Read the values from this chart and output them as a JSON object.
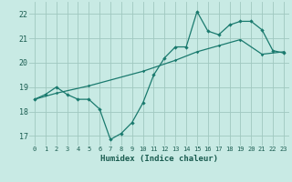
{
  "xlabel": "Humidex (Indice chaleur)",
  "bg_color": "#c8eae4",
  "grid_color": "#a0c8c0",
  "line_color": "#1a7a6e",
  "xlim": [
    -0.5,
    23.5
  ],
  "ylim": [
    16.6,
    22.5
  ],
  "xticks": [
    0,
    1,
    2,
    3,
    4,
    5,
    6,
    7,
    8,
    9,
    10,
    11,
    12,
    13,
    14,
    15,
    16,
    17,
    18,
    19,
    20,
    21,
    22,
    23
  ],
  "yticks": [
    17,
    18,
    19,
    20,
    21,
    22
  ],
  "jagged_x": [
    0,
    1,
    2,
    3,
    4,
    5,
    6,
    7,
    8,
    9,
    10,
    11,
    12,
    13,
    14,
    15,
    16,
    17,
    18,
    19,
    20,
    21,
    22,
    23
  ],
  "jagged_y": [
    18.5,
    18.7,
    19.0,
    18.7,
    18.5,
    18.5,
    18.1,
    16.85,
    17.1,
    17.55,
    18.35,
    19.5,
    20.2,
    20.65,
    20.65,
    22.1,
    21.3,
    21.15,
    21.55,
    21.7,
    21.7,
    21.35,
    20.5,
    20.4
  ],
  "smooth_x": [
    0,
    2,
    5,
    10,
    13,
    15,
    17,
    19,
    21,
    23
  ],
  "smooth_y": [
    18.5,
    18.75,
    19.05,
    19.65,
    20.1,
    20.45,
    20.7,
    20.95,
    20.35,
    20.45
  ]
}
